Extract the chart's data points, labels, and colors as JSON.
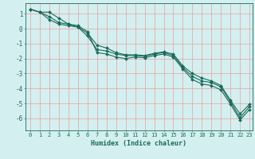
{
  "title": "",
  "xlabel": "Humidex (Indice chaleur)",
  "ylabel": "",
  "xlim": [
    -0.5,
    23.3
  ],
  "ylim": [
    -6.8,
    1.7
  ],
  "yticks": [
    1,
    0,
    -1,
    -2,
    -3,
    -4,
    -5,
    -6
  ],
  "xticks": [
    0,
    1,
    2,
    3,
    4,
    5,
    6,
    7,
    8,
    9,
    10,
    11,
    12,
    13,
    14,
    15,
    16,
    17,
    18,
    19,
    20,
    21,
    22,
    23
  ],
  "background_color": "#d4efef",
  "grid_color": "#e8a0a0",
  "line_color": "#1a6b5a",
  "line1_x": [
    0,
    1,
    2,
    3,
    4,
    5,
    6,
    7,
    8,
    9,
    10,
    11,
    12,
    13,
    14,
    15,
    16,
    17,
    18,
    19,
    20,
    21,
    22,
    23
  ],
  "line1_y": [
    1.3,
    1.1,
    1.1,
    0.7,
    0.3,
    0.1,
    -0.5,
    -1.4,
    -1.5,
    -1.7,
    -1.8,
    -1.8,
    -1.85,
    -1.7,
    -1.6,
    -1.8,
    -2.6,
    -3.2,
    -3.5,
    -3.6,
    -3.9,
    -4.9,
    -5.95,
    -5.2
  ],
  "line2_x": [
    0,
    1,
    2,
    3,
    4,
    5,
    6,
    7,
    8,
    9,
    10,
    11,
    12,
    13,
    14,
    15,
    16,
    17,
    18,
    19,
    20,
    21,
    22,
    23
  ],
  "line2_y": [
    1.3,
    1.1,
    0.6,
    0.3,
    0.2,
    0.1,
    -0.3,
    -1.1,
    -1.3,
    -1.6,
    -1.75,
    -1.75,
    -1.8,
    -1.65,
    -1.55,
    -1.7,
    -2.5,
    -3.0,
    -3.3,
    -3.5,
    -3.8,
    -4.8,
    -5.7,
    -5.05
  ],
  "line3_x": [
    0,
    1,
    2,
    3,
    4,
    5,
    6,
    7,
    8,
    9,
    10,
    11,
    12,
    13,
    14,
    15,
    16,
    17,
    18,
    19,
    20,
    21,
    22,
    23
  ],
  "line3_y": [
    1.3,
    1.1,
    0.8,
    0.4,
    0.3,
    0.2,
    -0.2,
    -1.6,
    -1.7,
    -1.9,
    -2.0,
    -1.9,
    -1.95,
    -1.8,
    -1.7,
    -1.9,
    -2.7,
    -3.4,
    -3.7,
    -3.8,
    -4.1,
    -5.05,
    -6.1,
    -5.4
  ],
  "marker": "D",
  "marker_size": 2,
  "line_width": 0.8,
  "tick_fontsize": 5,
  "xlabel_fontsize": 6,
  "xlabel_color": "#1a6b5a"
}
